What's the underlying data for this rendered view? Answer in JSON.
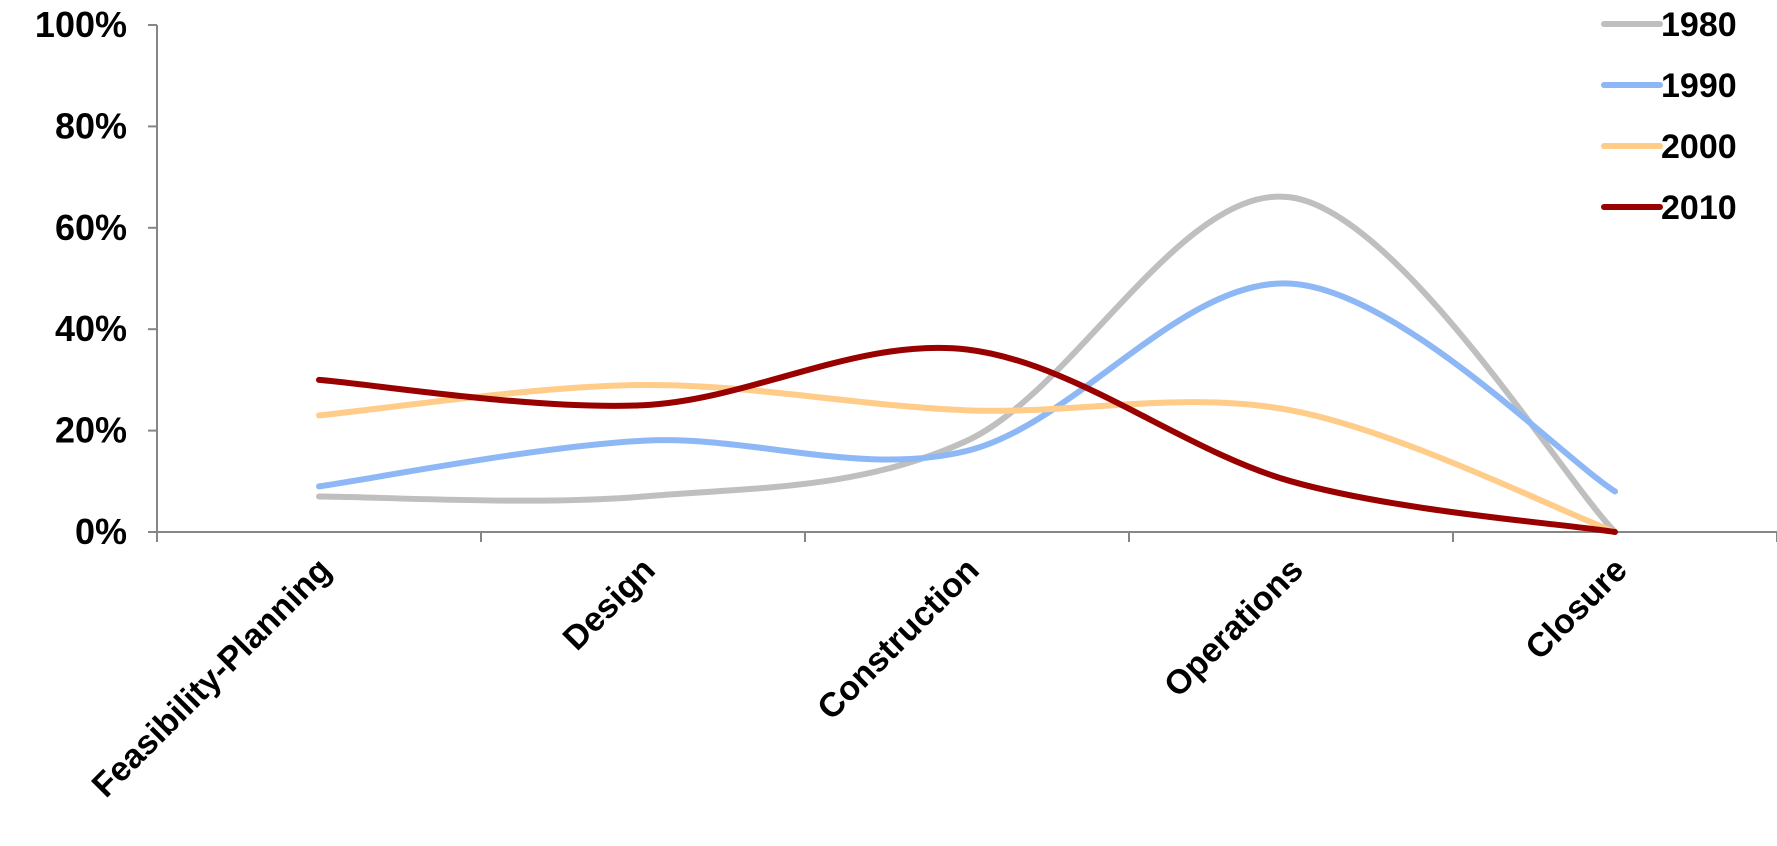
{
  "chart_data": {
    "type": "line",
    "smooth": true,
    "categories": [
      "Feasibility-Planning",
      "Design",
      "Construction",
      "Operations",
      "Closure"
    ],
    "ylim": [
      0,
      100
    ],
    "yticks": [
      {
        "value": 0,
        "label": "0%"
      },
      {
        "value": 20,
        "label": "20%"
      },
      {
        "value": 40,
        "label": "40%"
      },
      {
        "value": 60,
        "label": "60%"
      },
      {
        "value": 80,
        "label": "80%"
      },
      {
        "value": 100,
        "label": "100%"
      }
    ],
    "grid": false,
    "legend_position": "top-right",
    "series": [
      {
        "name": "1980",
        "color": "#BFBFBF",
        "values": [
          7,
          7,
          18,
          66,
          0
        ]
      },
      {
        "name": "1990",
        "color": "#8DB8F5",
        "values": [
          9,
          18,
          16,
          49,
          8
        ]
      },
      {
        "name": "2000",
        "color": "#FFCC8A",
        "values": [
          23,
          29,
          24,
          24,
          0
        ]
      },
      {
        "name": "2010",
        "color": "#990000",
        "values": [
          30,
          25,
          36,
          10,
          0
        ]
      }
    ]
  }
}
